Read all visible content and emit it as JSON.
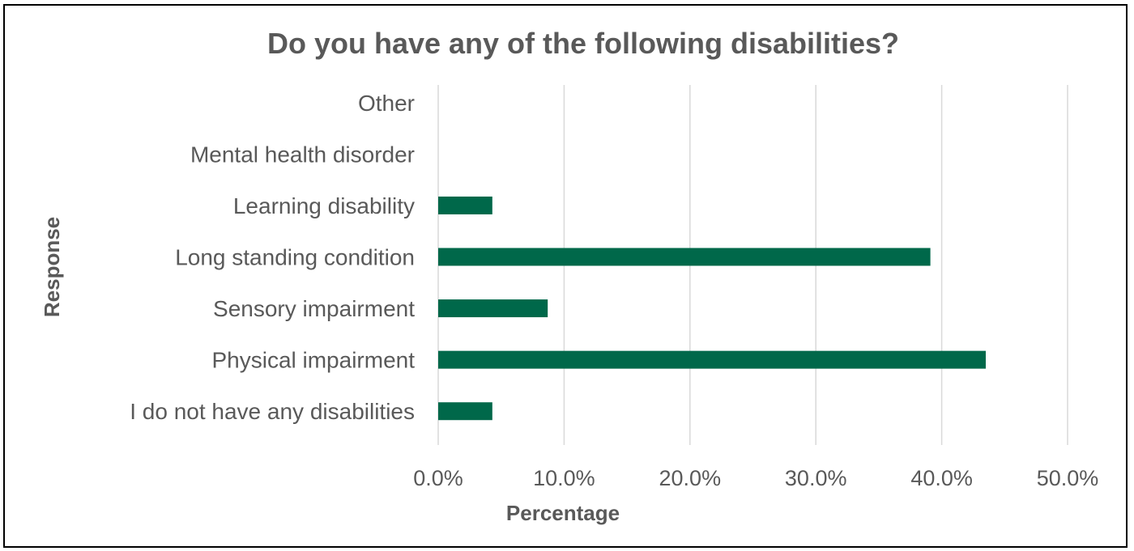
{
  "chart_data": {
    "type": "bar",
    "orientation": "horizontal",
    "title": "Do you have any of the following disabilities?",
    "xlabel": "Percentage",
    "ylabel": "Response",
    "categories": [
      "I do not have any disabilities",
      "Physical impairment",
      "Sensory impairment",
      "Long standing condition",
      "Learning disability",
      "Mental health disorder",
      "Other"
    ],
    "values": [
      4.3,
      43.5,
      8.7,
      39.1,
      4.3,
      0.0,
      0.0
    ],
    "xlim": [
      0,
      50
    ],
    "xticks": [
      "0.0%",
      "10.0%",
      "20.0%",
      "30.0%",
      "40.0%",
      "50.0%"
    ],
    "grid": true,
    "legend": "none",
    "bar_color": "#00684a"
  }
}
